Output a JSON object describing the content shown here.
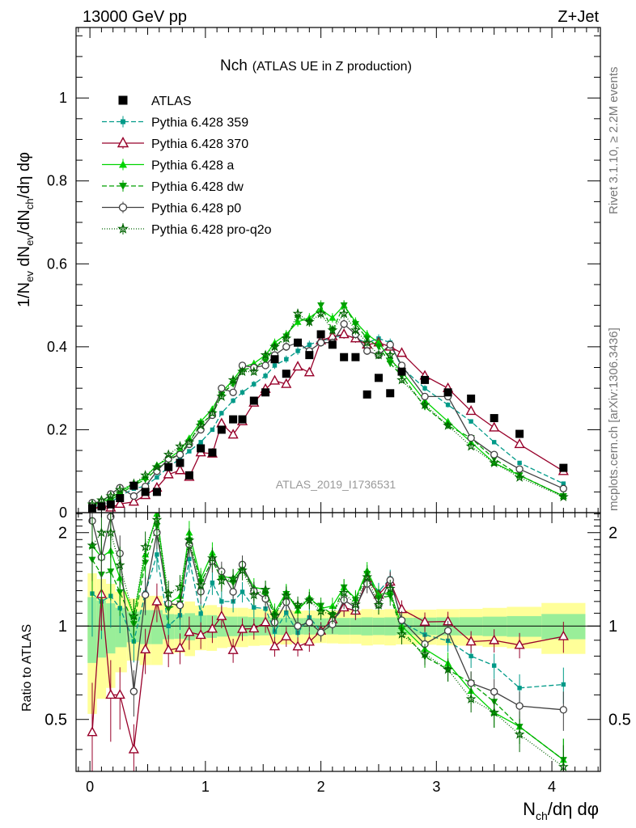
{
  "header": {
    "left": "13000 GeV pp",
    "right": "Z+Jet"
  },
  "side_labels": {
    "rivet": "Rivet 3.1.10, ≥ 2.2M events",
    "mcplots": "mcplots.cern.ch [arXiv:1306.3436]"
  },
  "chart_data": {
    "type": "line",
    "title": "Nch",
    "subtitle": "(ATLAS UE in Z production)",
    "watermark": "ATLAS_2019_I1736531",
    "xlabel": "N_ch/dη dφ",
    "ylabel": "1/N_ev dN_ev/dN_ch/dη dφ",
    "ratio_ylabel": "Ratio to ATLAS",
    "xlim": [
      -0.12,
      4.42
    ],
    "ylim": [
      0,
      1.17
    ],
    "ratio_ylim": [
      0.34,
      2.32
    ],
    "x_ticks": [
      "0",
      "1",
      "2",
      "3",
      "4"
    ],
    "y_ticks": [
      "0",
      "0.2",
      "0.4",
      "0.6",
      "0.8",
      "1"
    ],
    "ratio_ticks": [
      "0.5",
      "1",
      "2"
    ],
    "legend_position": "top-left",
    "x": [
      0.02,
      0.1,
      0.18,
      0.26,
      0.38,
      0.48,
      0.58,
      0.68,
      0.78,
      0.86,
      0.96,
      1.06,
      1.14,
      1.24,
      1.32,
      1.42,
      1.52,
      1.6,
      1.7,
      1.8,
      1.9,
      2.0,
      2.1,
      2.2,
      2.3,
      2.4,
      2.5,
      2.6,
      2.7,
      2.9,
      3.1,
      3.3,
      3.5,
      3.72,
      4.1
    ],
    "series": [
      {
        "name": "ATLAS",
        "color": "#000000",
        "marker": "square",
        "dash": "none",
        "values": [
          0.011,
          0.015,
          0.02,
          0.035,
          0.065,
          0.05,
          0.05,
          0.11,
          0.12,
          0.09,
          0.155,
          0.145,
          0.2,
          0.225,
          0.225,
          0.27,
          0.29,
          0.37,
          0.335,
          0.41,
          0.38,
          0.43,
          0.405,
          0.375,
          0.375,
          0.285,
          0.325,
          0.288,
          0.34,
          0.32,
          0.29,
          0.275,
          0.228,
          0.19,
          0.108
        ]
      },
      {
        "name": "Pythia 6.428 359",
        "color": "#009a88",
        "marker": "small-square",
        "dash": "6,3",
        "values": [
          0.014,
          0.018,
          0.025,
          0.04,
          0.058,
          0.064,
          0.085,
          0.11,
          0.13,
          0.148,
          0.17,
          0.2,
          0.24,
          0.27,
          0.29,
          0.31,
          0.33,
          0.355,
          0.37,
          0.39,
          0.405,
          0.415,
          0.42,
          0.43,
          0.42,
          0.41,
          0.42,
          0.41,
          0.35,
          0.3,
          0.26,
          0.22,
          0.17,
          0.12,
          0.07
        ]
      },
      {
        "name": "Pythia 6.428 370",
        "color": "#98002a",
        "marker": "open-triangle",
        "dash": "none",
        "values": [
          0.005,
          0.019,
          0.012,
          0.021,
          0.026,
          0.042,
          0.06,
          0.092,
          0.102,
          0.086,
          0.145,
          0.142,
          0.215,
          0.188,
          0.22,
          0.265,
          0.298,
          0.318,
          0.31,
          0.352,
          0.338,
          0.415,
          0.425,
          0.43,
          0.42,
          0.405,
          0.41,
          0.4,
          0.385,
          0.33,
          0.3,
          0.245,
          0.205,
          0.165,
          0.1
        ]
      },
      {
        "name": "Pythia 6.428 a",
        "color": "#00d400",
        "marker": "triangle",
        "dash": "none",
        "values": [
          0.02,
          0.025,
          0.035,
          0.05,
          0.07,
          0.085,
          0.115,
          0.13,
          0.15,
          0.18,
          0.22,
          0.25,
          0.29,
          0.32,
          0.35,
          0.36,
          0.38,
          0.41,
          0.43,
          0.46,
          0.47,
          0.49,
          0.47,
          0.5,
          0.46,
          0.43,
          0.41,
          0.37,
          0.34,
          0.27,
          0.22,
          0.17,
          0.12,
          0.09,
          0.04
        ]
      },
      {
        "name": "Pythia 6.428 dw",
        "color": "#00a000",
        "marker": "down-triangle",
        "dash": "6,3",
        "values": [
          0.018,
          0.022,
          0.03,
          0.045,
          0.066,
          0.08,
          0.105,
          0.125,
          0.142,
          0.17,
          0.215,
          0.235,
          0.285,
          0.31,
          0.345,
          0.35,
          0.365,
          0.4,
          0.425,
          0.47,
          0.46,
          0.5,
          0.44,
          0.5,
          0.455,
          0.42,
          0.4,
          0.36,
          0.33,
          0.255,
          0.21,
          0.18,
          0.13,
          0.09,
          0.04
        ]
      },
      {
        "name": "Pythia 6.428 p0",
        "color": "#404040",
        "marker": "open-circle",
        "dash": "none",
        "values": [
          0.024,
          0.025,
          0.045,
          0.06,
          0.04,
          0.063,
          0.1,
          0.13,
          0.14,
          0.165,
          0.2,
          0.235,
          0.3,
          0.29,
          0.355,
          0.35,
          0.355,
          0.38,
          0.4,
          0.41,
          0.39,
          0.41,
          0.41,
          0.455,
          0.43,
          0.39,
          0.38,
          0.405,
          0.355,
          0.28,
          0.28,
          0.18,
          0.14,
          0.105,
          0.058
        ]
      },
      {
        "name": "Pythia 6.428 pro-q2o",
        "color": "#006400",
        "marker": "open-star",
        "dash": "1,2",
        "values": [
          0.02,
          0.03,
          0.04,
          0.055,
          0.07,
          0.09,
          0.11,
          0.14,
          0.16,
          0.17,
          0.21,
          0.24,
          0.28,
          0.32,
          0.34,
          0.34,
          0.38,
          0.4,
          0.42,
          0.48,
          0.46,
          0.48,
          0.44,
          0.48,
          0.44,
          0.41,
          0.38,
          0.38,
          0.32,
          0.26,
          0.21,
          0.16,
          0.12,
          0.085,
          0.038
        ]
      }
    ]
  }
}
